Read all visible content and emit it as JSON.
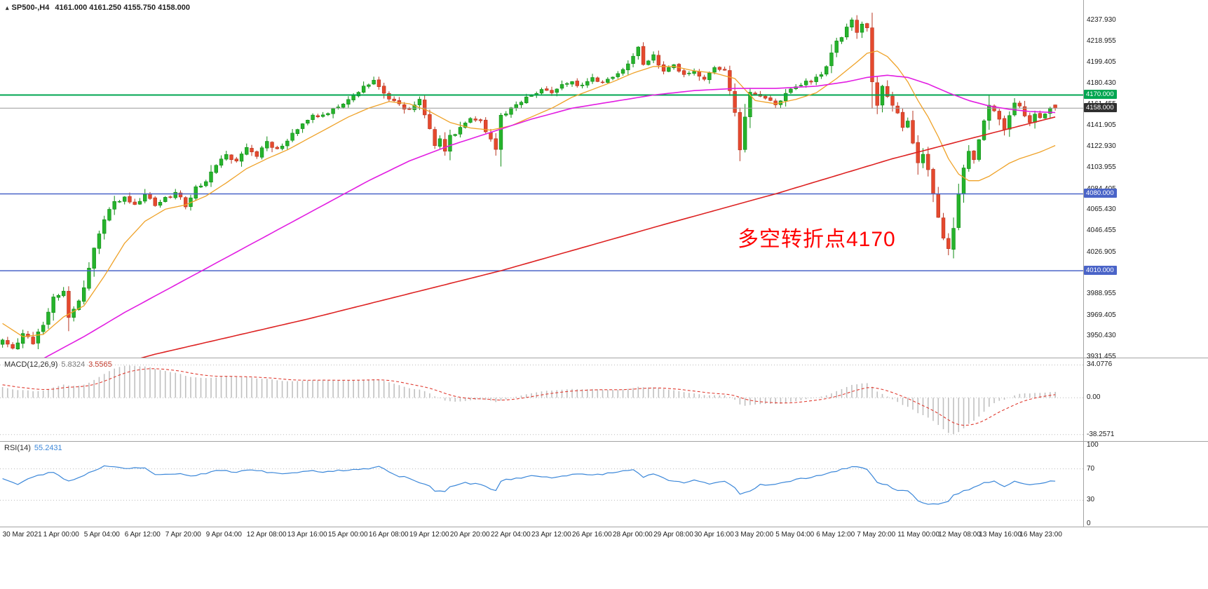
{
  "window": {
    "icon_glyph": "▴",
    "symbol_period": "SP500-,H4",
    "ohlc": "4161.000 4161.250 4155.750 4158.000"
  },
  "annotation": {
    "text": "多空转折点4170",
    "color": "#ff0000"
  },
  "main_panel": {
    "scale": {
      "top_value": 4256.5,
      "bottom_value": 3930.9
    },
    "y_ticks": [
      "4237.930",
      "4218.955",
      "4199.405",
      "4180.430",
      "4161.455",
      "4141.905",
      "4122.930",
      "4103.955",
      "4084.405",
      "4065.430",
      "4046.455",
      "4026.905",
      "4007.930",
      "3988.955",
      "3969.405",
      "3950.430",
      "3931.455"
    ],
    "price_lines": [
      {
        "value": 4170.0,
        "label": "4170.000",
        "line_color": "#00a651",
        "tag_bg": "#00a651",
        "width": 2
      },
      {
        "value": 4158.0,
        "label": "4158.000",
        "line_color": "#9a9a9a",
        "tag_bg": "#2f2f2f",
        "width": 1
      },
      {
        "value": 4080.0,
        "label": "4080.000",
        "line_color": "#4a64c8",
        "tag_bg": "#4a64c8",
        "width": 1.5
      },
      {
        "value": 4010.0,
        "label": "4010.000",
        "line_color": "#4a64c8",
        "tag_bg": "#4a64c8",
        "width": 1.5
      }
    ]
  },
  "macd_panel": {
    "name": "MACD(12,26,9)",
    "value_main": "5.8324",
    "value_signal": "3.5565",
    "range": [
      -45,
      41
    ],
    "y_ticks": [
      {
        "value": 34.0776,
        "label": "34.0776"
      },
      {
        "value": 0,
        "label": "0.00"
      },
      {
        "value": -38.2571,
        "label": "-38.2571"
      }
    ],
    "histogram_color": "#c0c0c0",
    "signal_color": "#e03c31"
  },
  "rsi_panel": {
    "name": "RSI(14)",
    "value": "55.2431",
    "range": [
      0,
      100
    ],
    "levels": [
      70,
      30
    ],
    "line_color": "#3b87d9",
    "y_ticks": [
      {
        "value": 100,
        "label": "100"
      },
      {
        "value": 70,
        "label": "70"
      },
      {
        "value": 30,
        "label": "30"
      },
      {
        "value": 0,
        "label": "0"
      }
    ]
  },
  "time_axis": {
    "bars_per_tick": 8,
    "labels": [
      "30 Mar 2021",
      "1 Apr 00:00",
      "5 Apr 04:00",
      "6 Apr 12:00",
      "7 Apr 20:00",
      "9 Apr 04:00",
      "12 Apr 08:00",
      "13 Apr 16:00",
      "15 Apr 00:00",
      "16 Apr 08:00",
      "19 Apr 12:00",
      "20 Apr 20:00",
      "22 Apr 04:00",
      "23 Apr 12:00",
      "26 Apr 16:00",
      "28 Apr 00:00",
      "29 Apr 08:00",
      "30 Apr 16:00",
      "3 May 20:00",
      "5 May 04:00",
      "6 May 12:00",
      "7 May 20:00",
      "11 May 00:00",
      "12 May 08:00",
      "13 May 16:00",
      "16 May 23:00"
    ]
  },
  "chart_data": {
    "type": "candlestick",
    "symbol": "SP500-",
    "timeframe": "H4",
    "bars": 208,
    "slots": 213,
    "up_color": "#26b32c",
    "up_border": "#0f8c14",
    "down_color": "#e5492e",
    "down_border": "#b83520",
    "current_price": 4158.0,
    "last_bar": {
      "open": 4161.0,
      "high": 4161.25,
      "low": 4155.75,
      "close": 4158.0
    },
    "horizontal_levels": [
      4170.0,
      4080.0,
      4010.0
    ],
    "close_keypoints": [
      [
        0,
        3948
      ],
      [
        2,
        3940
      ],
      [
        4,
        3952
      ],
      [
        6,
        3945
      ],
      [
        8,
        3962
      ],
      [
        10,
        3985
      ],
      [
        12,
        3992
      ],
      [
        13,
        3968
      ],
      [
        15,
        3982
      ],
      [
        16,
        3995
      ],
      [
        18,
        4030
      ],
      [
        20,
        4058
      ],
      [
        22,
        4072
      ],
      [
        24,
        4078
      ],
      [
        26,
        4070
      ],
      [
        28,
        4080
      ],
      [
        30,
        4068
      ],
      [
        32,
        4075
      ],
      [
        34,
        4082
      ],
      [
        36,
        4070
      ],
      [
        38,
        4085
      ],
      [
        40,
        4092
      ],
      [
        42,
        4105
      ],
      [
        44,
        4115
      ],
      [
        46,
        4110
      ],
      [
        48,
        4122
      ],
      [
        50,
        4115
      ],
      [
        52,
        4128
      ],
      [
        54,
        4120
      ],
      [
        56,
        4130
      ],
      [
        60,
        4148
      ],
      [
        64,
        4155
      ],
      [
        68,
        4165
      ],
      [
        71,
        4178
      ],
      [
        73,
        4183
      ],
      [
        76,
        4168
      ],
      [
        78,
        4160
      ],
      [
        80,
        4158
      ],
      [
        82,
        4165
      ],
      [
        84,
        4140
      ],
      [
        85,
        4122
      ],
      [
        86,
        4130
      ],
      [
        87,
        4118
      ],
      [
        88,
        4132
      ],
      [
        90,
        4140
      ],
      [
        92,
        4150
      ],
      [
        94,
        4145
      ],
      [
        96,
        4128
      ],
      [
        97,
        4120
      ],
      [
        98,
        4150
      ],
      [
        100,
        4158
      ],
      [
        102,
        4165
      ],
      [
        104,
        4170
      ],
      [
        106,
        4175
      ],
      [
        108,
        4172
      ],
      [
        110,
        4178
      ],
      [
        112,
        4182
      ],
      [
        114,
        4178
      ],
      [
        116,
        4185
      ],
      [
        118,
        4182
      ],
      [
        120,
        4188
      ],
      [
        122,
        4195
      ],
      [
        124,
        4205
      ],
      [
        125,
        4212
      ],
      [
        126,
        4198
      ],
      [
        128,
        4205
      ],
      [
        130,
        4190
      ],
      [
        132,
        4198
      ],
      [
        134,
        4188
      ],
      [
        136,
        4192
      ],
      [
        138,
        4185
      ],
      [
        140,
        4195
      ],
      [
        142,
        4192
      ],
      [
        144,
        4155
      ],
      [
        145,
        4120
      ],
      [
        146,
        4150
      ],
      [
        147,
        4172
      ],
      [
        149,
        4168
      ],
      [
        152,
        4162
      ],
      [
        155,
        4175
      ],
      [
        158,
        4182
      ],
      [
        160,
        4185
      ],
      [
        162,
        4195
      ],
      [
        164,
        4218
      ],
      [
        166,
        4230
      ],
      [
        167,
        4237
      ],
      [
        168,
        4228
      ],
      [
        169,
        4235
      ],
      [
        170,
        4232
      ],
      [
        171,
        4180
      ],
      [
        172,
        4162
      ],
      [
        173,
        4178
      ],
      [
        174,
        4170
      ],
      [
        175,
        4160
      ],
      [
        176,
        4152
      ],
      [
        177,
        4140
      ],
      [
        178,
        4148
      ],
      [
        179,
        4125
      ],
      [
        180,
        4110
      ],
      [
        181,
        4118
      ],
      [
        182,
        4100
      ],
      [
        183,
        4080
      ],
      [
        184,
        4060
      ],
      [
        185,
        4040
      ],
      [
        186,
        4032
      ],
      [
        187,
        4050
      ],
      [
        188,
        4080
      ],
      [
        189,
        4105
      ],
      [
        190,
        4120
      ],
      [
        191,
        4112
      ],
      [
        192,
        4130
      ],
      [
        193,
        4148
      ],
      [
        194,
        4160
      ],
      [
        195,
        4155
      ],
      [
        196,
        4148
      ],
      [
        197,
        4140
      ],
      [
        198,
        4152
      ],
      [
        199,
        4162
      ],
      [
        200,
        4158
      ],
      [
        201,
        4150
      ],
      [
        202,
        4146
      ],
      [
        203,
        4152
      ],
      [
        204,
        4148
      ],
      [
        205,
        4154
      ],
      [
        206,
        4160
      ],
      [
        207,
        4158
      ]
    ],
    "moving_averages": [
      {
        "name": "ma-fast-orange",
        "color": "#efa228",
        "width": 1.3,
        "keypoints": [
          [
            0,
            3962
          ],
          [
            4,
            3950
          ],
          [
            8,
            3952
          ],
          [
            12,
            3968
          ],
          [
            16,
            3978
          ],
          [
            20,
            4005
          ],
          [
            24,
            4035
          ],
          [
            28,
            4055
          ],
          [
            32,
            4066
          ],
          [
            36,
            4070
          ],
          [
            40,
            4078
          ],
          [
            44,
            4090
          ],
          [
            48,
            4103
          ],
          [
            52,
            4112
          ],
          [
            56,
            4120
          ],
          [
            60,
            4130
          ],
          [
            64,
            4140
          ],
          [
            68,
            4150
          ],
          [
            72,
            4158
          ],
          [
            76,
            4164
          ],
          [
            80,
            4162
          ],
          [
            84,
            4155
          ],
          [
            88,
            4145
          ],
          [
            92,
            4140
          ],
          [
            96,
            4138
          ],
          [
            100,
            4142
          ],
          [
            104,
            4150
          ],
          [
            108,
            4158
          ],
          [
            112,
            4168
          ],
          [
            116,
            4175
          ],
          [
            120,
            4182
          ],
          [
            124,
            4190
          ],
          [
            128,
            4196
          ],
          [
            132,
            4196
          ],
          [
            136,
            4192
          ],
          [
            140,
            4190
          ],
          [
            144,
            4185
          ],
          [
            146,
            4175
          ],
          [
            148,
            4165
          ],
          [
            152,
            4162
          ],
          [
            156,
            4166
          ],
          [
            160,
            4172
          ],
          [
            164,
            4185
          ],
          [
            168,
            4200
          ],
          [
            170,
            4208
          ],
          [
            172,
            4210
          ],
          [
            174,
            4205
          ],
          [
            176,
            4195
          ],
          [
            178,
            4182
          ],
          [
            180,
            4165
          ],
          [
            182,
            4150
          ],
          [
            184,
            4132
          ],
          [
            186,
            4112
          ],
          [
            188,
            4098
          ],
          [
            190,
            4092
          ],
          [
            192,
            4092
          ],
          [
            194,
            4096
          ],
          [
            196,
            4102
          ],
          [
            198,
            4108
          ],
          [
            200,
            4112
          ],
          [
            202,
            4115
          ],
          [
            204,
            4118
          ],
          [
            206,
            4122
          ],
          [
            207,
            4124
          ]
        ]
      },
      {
        "name": "ma-mid-magenta",
        "color": "#e21ee2",
        "width": 1.6,
        "keypoints": [
          [
            0,
            3912
          ],
          [
            8,
            3930
          ],
          [
            16,
            3950
          ],
          [
            24,
            3972
          ],
          [
            32,
            3992
          ],
          [
            40,
            4012
          ],
          [
            48,
            4032
          ],
          [
            56,
            4052
          ],
          [
            64,
            4072
          ],
          [
            72,
            4092
          ],
          [
            80,
            4110
          ],
          [
            88,
            4124
          ],
          [
            96,
            4136
          ],
          [
            104,
            4148
          ],
          [
            112,
            4158
          ],
          [
            120,
            4164
          ],
          [
            128,
            4170
          ],
          [
            136,
            4174
          ],
          [
            144,
            4176
          ],
          [
            152,
            4176
          ],
          [
            160,
            4178
          ],
          [
            166,
            4182
          ],
          [
            170,
            4186
          ],
          [
            174,
            4188
          ],
          [
            178,
            4186
          ],
          [
            182,
            4180
          ],
          [
            186,
            4172
          ],
          [
            190,
            4165
          ],
          [
            194,
            4160
          ],
          [
            198,
            4157
          ],
          [
            202,
            4155
          ],
          [
            207,
            4154
          ]
        ]
      },
      {
        "name": "ma-slow-red",
        "color": "#dd2222",
        "width": 1.6,
        "keypoints": [
          [
            0,
            3896
          ],
          [
            30,
            3934
          ],
          [
            60,
            3966
          ],
          [
            98,
            4010
          ],
          [
            130,
            4052
          ],
          [
            152,
            4080
          ],
          [
            175,
            4112
          ],
          [
            190,
            4130
          ],
          [
            207,
            4150
          ]
        ]
      }
    ],
    "macd": {
      "fast": 12,
      "slow": 26,
      "signal": 9,
      "current_main": 5.8324,
      "current_signal": 3.5565,
      "axis_max": 34.0776,
      "axis_min": -38.2571
    },
    "rsi": {
      "period": 14,
      "current": 55.2431,
      "keypoints": [
        [
          0,
          58
        ],
        [
          3,
          50
        ],
        [
          6,
          60
        ],
        [
          10,
          66
        ],
        [
          13,
          54
        ],
        [
          16,
          62
        ],
        [
          20,
          74
        ],
        [
          24,
          70
        ],
        [
          28,
          72
        ],
        [
          30,
          62
        ],
        [
          34,
          64
        ],
        [
          38,
          61
        ],
        [
          42,
          68
        ],
        [
          46,
          66
        ],
        [
          48,
          69
        ],
        [
          52,
          66
        ],
        [
          56,
          64
        ],
        [
          60,
          68
        ],
        [
          64,
          66
        ],
        [
          68,
          69
        ],
        [
          72,
          70
        ],
        [
          74,
          73
        ],
        [
          77,
          62
        ],
        [
          80,
          58
        ],
        [
          84,
          47
        ],
        [
          85,
          42
        ],
        [
          87,
          41
        ],
        [
          88,
          48
        ],
        [
          91,
          52
        ],
        [
          94,
          50
        ],
        [
          96,
          44
        ],
        [
          97,
          42
        ],
        [
          98,
          55
        ],
        [
          101,
          58
        ],
        [
          104,
          61
        ],
        [
          108,
          59
        ],
        [
          112,
          63
        ],
        [
          116,
          62
        ],
        [
          120,
          65
        ],
        [
          124,
          69
        ],
        [
          126,
          60
        ],
        [
          128,
          63
        ],
        [
          131,
          55
        ],
        [
          134,
          52
        ],
        [
          136,
          56
        ],
        [
          139,
          50
        ],
        [
          142,
          55
        ],
        [
          144,
          46
        ],
        [
          145,
          38
        ],
        [
          147,
          42
        ],
        [
          149,
          50
        ],
        [
          152,
          50
        ],
        [
          156,
          56
        ],
        [
          160,
          61
        ],
        [
          164,
          67
        ],
        [
          167,
          73
        ],
        [
          170,
          70
        ],
        [
          172,
          52
        ],
        [
          174,
          50
        ],
        [
          176,
          42
        ],
        [
          178,
          42
        ],
        [
          180,
          30
        ],
        [
          182,
          25
        ],
        [
          184,
          24
        ],
        [
          186,
          28
        ],
        [
          187,
          36
        ],
        [
          189,
          42
        ],
        [
          191,
          46
        ],
        [
          193,
          52
        ],
        [
          195,
          54
        ],
        [
          197,
          47
        ],
        [
          199,
          55
        ],
        [
          201,
          50
        ],
        [
          203,
          51
        ],
        [
          205,
          53
        ],
        [
          207,
          55.2
        ]
      ]
    }
  }
}
